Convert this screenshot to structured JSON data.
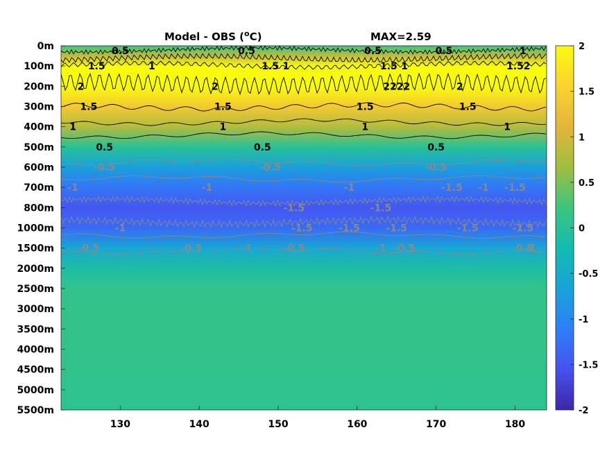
{
  "chart_data": {
    "type": "heatmap",
    "title_left": "Model - OBS (",
    "title_unit_sup": "o",
    "title_unit": "C)",
    "title_max": "MAX=2.59",
    "x_ticks": [
      130,
      140,
      150,
      160,
      170,
      180
    ],
    "xlim": [
      122.5,
      184
    ],
    "y_ticks": [
      "0m",
      "100m",
      "200m",
      "300m",
      "400m",
      "500m",
      "600m",
      "700m",
      "800m",
      "1000m",
      "1500m",
      "2000m",
      "2500m",
      "3000m",
      "3500m",
      "4000m",
      "4500m",
      "5000m",
      "5500m"
    ],
    "colorbar_ticks": [
      2,
      1.5,
      1,
      0.5,
      0,
      -0.5,
      -1,
      -1.5,
      -2
    ],
    "clim": [
      -2,
      2
    ],
    "colormap": [
      "#3e26a8",
      "#4751f0",
      "#2f7ff9",
      "#18a3d9",
      "#13bcb1",
      "#3cc57d",
      "#9ebf40",
      "#e3b53b",
      "#fbd32f",
      "#f9fb0e"
    ],
    "depth_profile": [
      {
        "depth": "0m",
        "value": 0.2
      },
      {
        "depth": "50m",
        "value": 0.9
      },
      {
        "depth": "100m",
        "value": 2.1
      },
      {
        "depth": "200m",
        "value": 2.0
      },
      {
        "depth": "300m",
        "value": 1.4
      },
      {
        "depth": "400m",
        "value": 0.8
      },
      {
        "depth": "500m",
        "value": 0.0
      },
      {
        "depth": "600m",
        "value": -0.7
      },
      {
        "depth": "700m",
        "value": -1.2
      },
      {
        "depth": "800m",
        "value": -1.5
      },
      {
        "depth": "1000m",
        "value": -1.3
      },
      {
        "depth": "1500m",
        "value": -0.6
      },
      {
        "depth": "2000m",
        "value": -0.1
      },
      {
        "depth": "2500m",
        "value": 0.1
      },
      {
        "depth": "3000m",
        "value": 0.12
      },
      {
        "depth": "4000m",
        "value": 0.12
      },
      {
        "depth": "5000m",
        "value": 0.08
      },
      {
        "depth": "5500m",
        "value": 0.05
      }
    ],
    "contour_labels": [
      {
        "text": "0.5",
        "x": 130,
        "depth": "0m",
        "color": "black"
      },
      {
        "text": "1.5",
        "x": 127,
        "depth": "100m",
        "color": "black"
      },
      {
        "text": "1",
        "x": 134,
        "depth": "100m",
        "color": "black"
      },
      {
        "text": "0.5",
        "x": 146,
        "depth": "0m",
        "color": "black"
      },
      {
        "text": "1.5",
        "x": 149,
        "depth": "100m",
        "color": "black"
      },
      {
        "text": "1",
        "x": 151,
        "depth": "100m",
        "color": "black"
      },
      {
        "text": "0.5",
        "x": 162,
        "depth": "0m",
        "color": "black"
      },
      {
        "text": "1.5",
        "x": 164,
        "depth": "100m",
        "color": "black"
      },
      {
        "text": "1",
        "x": 166,
        "depth": "100m",
        "color": "black"
      },
      {
        "text": "0.5",
        "x": 171,
        "depth": "0m",
        "color": "black"
      },
      {
        "text": "1",
        "x": 181,
        "depth": "0m",
        "color": "black"
      },
      {
        "text": "1.5",
        "x": 180,
        "depth": "100m",
        "color": "black"
      },
      {
        "text": "2",
        "x": 181.5,
        "depth": "100m",
        "color": "black"
      },
      {
        "text": "2",
        "x": 173,
        "depth": "200m",
        "color": "black"
      },
      {
        "text": "2222",
        "x": 165,
        "depth": "200m",
        "color": "black"
      },
      {
        "text": "2",
        "x": 125,
        "depth": "200m",
        "color": "black"
      },
      {
        "text": "2",
        "x": 142,
        "depth": "200m",
        "color": "black"
      },
      {
        "text": "1.5",
        "x": 126,
        "depth": "300m",
        "color": "black"
      },
      {
        "text": "1.5",
        "x": 143,
        "depth": "300m",
        "color": "black"
      },
      {
        "text": "1.5",
        "x": 161,
        "depth": "300m",
        "color": "black"
      },
      {
        "text": "1.5",
        "x": 174,
        "depth": "300m",
        "color": "black"
      },
      {
        "text": "1",
        "x": 124,
        "depth": "400m",
        "color": "black"
      },
      {
        "text": "1",
        "x": 143,
        "depth": "400m",
        "color": "black"
      },
      {
        "text": "1",
        "x": 161,
        "depth": "400m",
        "color": "black"
      },
      {
        "text": "1",
        "x": 179,
        "depth": "400m",
        "color": "black"
      },
      {
        "text": "0.5",
        "x": 128,
        "depth": "500m",
        "color": "black"
      },
      {
        "text": "0.5",
        "x": 148,
        "depth": "500m",
        "color": "black"
      },
      {
        "text": "0.5",
        "x": 170,
        "depth": "500m",
        "color": "black"
      },
      {
        "text": "-0.5",
        "x": 128,
        "depth": "600m",
        "color": "gray"
      },
      {
        "text": "-0.5",
        "x": 149,
        "depth": "600m",
        "color": "gray"
      },
      {
        "text": "-0.5",
        "x": 170,
        "depth": "600m",
        "color": "gray"
      },
      {
        "text": "-1",
        "x": 124,
        "depth": "700m",
        "color": "gray"
      },
      {
        "text": "-1",
        "x": 141,
        "depth": "700m",
        "color": "gray"
      },
      {
        "text": "-1",
        "x": 159,
        "depth": "700m",
        "color": "gray"
      },
      {
        "text": "-1",
        "x": 176,
        "depth": "700m",
        "color": "gray"
      },
      {
        "text": "-1.5",
        "x": 152,
        "depth": "800m",
        "color": "gray"
      },
      {
        "text": "-1.5",
        "x": 163,
        "depth": "800m",
        "color": "gray"
      },
      {
        "text": "-1.5",
        "x": 172,
        "depth": "700m",
        "color": "gray"
      },
      {
        "text": "-1.5",
        "x": 180,
        "depth": "700m",
        "color": "gray"
      },
      {
        "text": "-1.5",
        "x": 153,
        "depth": "1000m",
        "color": "gray"
      },
      {
        "text": "-1.5",
        "x": 159,
        "depth": "1000m",
        "color": "gray"
      },
      {
        "text": "-1.5",
        "x": 165,
        "depth": "1000m",
        "color": "gray"
      },
      {
        "text": "-1.5",
        "x": 174,
        "depth": "1000m",
        "color": "gray"
      },
      {
        "text": "-1.5",
        "x": 181,
        "depth": "1000m",
        "color": "gray"
      },
      {
        "text": "-1",
        "x": 130,
        "depth": "1000m",
        "color": "gray"
      },
      {
        "text": "-1",
        "x": 146,
        "depth": "1500m",
        "color": "gray"
      },
      {
        "text": "-1",
        "x": 163,
        "depth": "1500m",
        "color": "gray"
      },
      {
        "text": "-1",
        "x": 182,
        "depth": "1500m",
        "color": "gray"
      },
      {
        "text": "-0.5",
        "x": 126,
        "depth": "1500m",
        "color": "gray"
      },
      {
        "text": "-0.5",
        "x": 139,
        "depth": "1500m",
        "color": "gray"
      },
      {
        "text": "-0.5",
        "x": 152,
        "depth": "1500m",
        "color": "gray"
      },
      {
        "text": "-0.5",
        "x": 166,
        "depth": "1500m",
        "color": "gray"
      },
      {
        "text": "-0.5",
        "x": 181,
        "depth": "1500m",
        "color": "gray"
      }
    ]
  }
}
